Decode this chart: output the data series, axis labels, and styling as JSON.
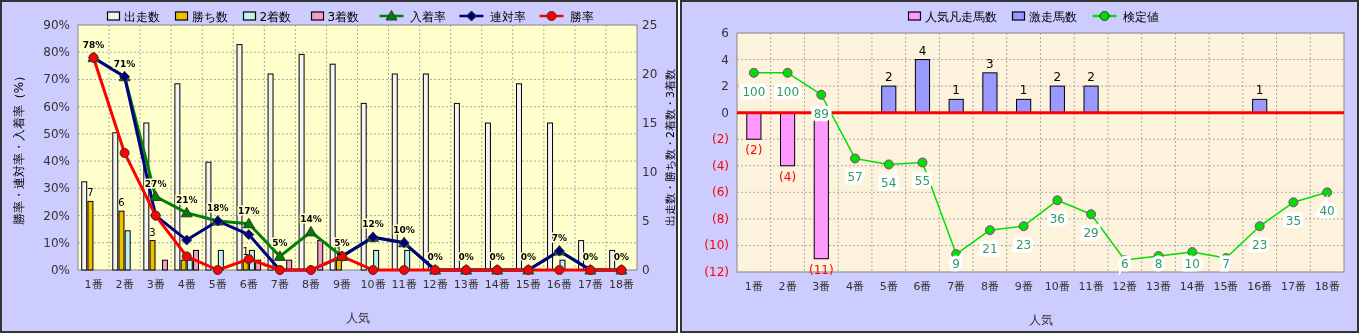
{
  "chart_data": [
    {
      "type": "bar",
      "xlabel": "人気",
      "ylabel": "勝率・連対率・入着率（%）",
      "y2label": "出走数・勝ち数・2着数・3着数",
      "categories": [
        "1番",
        "2番",
        "3番",
        "4番",
        "5番",
        "6番",
        "7番",
        "8番",
        "9番",
        "10番",
        "11番",
        "12番",
        "13番",
        "14番",
        "15番",
        "16番",
        "17番",
        "18番"
      ],
      "series": [
        {
          "name": "出走数",
          "axis": "y2",
          "color": "#f4f4f4",
          "values": [
            9,
            14,
            15,
            19,
            11,
            23,
            20,
            22,
            21,
            17,
            20,
            20,
            17,
            15,
            19,
            15,
            3,
            2
          ]
        },
        {
          "name": "勝ち数",
          "axis": "y2",
          "color": "#f0c000",
          "values": [
            7,
            6,
            3,
            1,
            0,
            1,
            0,
            0,
            1,
            0,
            0,
            0,
            0,
            0,
            0,
            0,
            0,
            0
          ],
          "value_labels": [
            "7",
            "6",
            "3",
            null,
            null,
            "1",
            null,
            null,
            "1",
            null,
            null,
            null,
            null,
            null,
            null,
            null,
            null,
            null
          ]
        },
        {
          "name": "2着数",
          "axis": "y2",
          "color": "#c0f0f0",
          "values": [
            0,
            4,
            0,
            1,
            2,
            2,
            0,
            0,
            0,
            2,
            2,
            0,
            0,
            0,
            0,
            1,
            0,
            0
          ]
        },
        {
          "name": "3着数",
          "axis": "y2",
          "color": "#f0a0c8",
          "values": [
            0,
            0,
            1,
            2,
            0,
            1,
            1,
            3,
            0,
            0,
            0,
            0,
            0,
            0,
            0,
            0,
            0,
            0
          ]
        },
        {
          "name": "入着率",
          "type": "line",
          "marker": "triangle",
          "color": "#008000",
          "values": [
            78,
            71,
            27,
            21,
            18,
            17,
            5,
            14,
            5,
            12,
            10,
            0,
            0,
            0,
            0,
            7,
            0,
            0
          ],
          "value_labels": [
            "78%",
            "71%",
            "27%",
            "21%",
            "18%",
            "17%",
            "5%",
            "14%",
            "5%",
            "12%",
            "10%",
            "0%",
            "0%",
            "0%",
            "0%",
            "7%",
            "0%",
            "0%"
          ]
        },
        {
          "name": "連対率",
          "type": "line",
          "marker": "diamond",
          "color": "#000080",
          "values": [
            78,
            71,
            20,
            11,
            18,
            13,
            0,
            0,
            5,
            12,
            10,
            0,
            0,
            0,
            0,
            7,
            0,
            0
          ]
        },
        {
          "name": "勝率",
          "type": "line",
          "marker": "circle",
          "color": "#ff0000",
          "values": [
            78,
            43,
            20,
            5,
            0,
            4,
            0,
            0,
            5,
            0,
            0,
            0,
            0,
            0,
            0,
            0,
            0,
            0
          ]
        }
      ],
      "ylim": [
        0,
        90
      ],
      "yticks": [
        {
          "value": 0,
          "label": "0%"
        },
        {
          "value": 10,
          "label": "10%"
        },
        {
          "value": 20,
          "label": "20%"
        },
        {
          "value": 30,
          "label": "30%"
        },
        {
          "value": 40,
          "label": "40%"
        },
        {
          "value": 50,
          "label": "50%"
        },
        {
          "value": 60,
          "label": "60%"
        },
        {
          "value": 70,
          "label": "70%"
        },
        {
          "value": 80,
          "label": "80%"
        },
        {
          "value": 90,
          "label": "90%"
        }
      ],
      "y2lim": [
        0,
        25
      ],
      "y2ticks": [
        0,
        5,
        10,
        15,
        20,
        25
      ],
      "grid": true,
      "legend": "top"
    },
    {
      "type": "bar",
      "stacked": true,
      "xlabel": "人気",
      "categories": [
        "1番",
        "2番",
        "3番",
        "4番",
        "5番",
        "6番",
        "7番",
        "8番",
        "9番",
        "10番",
        "11番",
        "12番",
        "13番",
        "14番",
        "15番",
        "16番",
        "17番",
        "18番"
      ],
      "series": [
        {
          "name": "人気凡走馬数",
          "color": "#ff99ff",
          "values": [
            -2,
            -4,
            -11,
            null,
            null,
            null,
            null,
            null,
            null,
            null,
            null,
            null,
            null,
            null,
            null,
            null,
            null,
            null
          ],
          "value_labels": [
            "(2)",
            "(4)",
            "(11)",
            null,
            null,
            null,
            null,
            null,
            null,
            null,
            null,
            null,
            null,
            null,
            null,
            null,
            null,
            null
          ]
        },
        {
          "name": "激走馬数",
          "color": "#9999ff",
          "values": [
            null,
            null,
            null,
            null,
            2,
            4,
            1,
            3,
            1,
            2,
            2,
            null,
            null,
            null,
            null,
            1,
            null,
            null
          ],
          "value_labels": [
            null,
            null,
            null,
            null,
            "2",
            "4",
            "1",
            "3",
            "1",
            "2",
            "2",
            null,
            null,
            null,
            null,
            "1",
            null,
            null
          ]
        },
        {
          "name": "検定値",
          "type": "line",
          "axis": "y2",
          "marker": "circle",
          "color": "#00e000",
          "values": [
            100,
            100,
            89,
            57,
            54,
            55,
            9,
            21,
            23,
            36,
            29,
            6,
            8,
            10,
            7,
            23,
            35,
            40
          ],
          "value_labels": [
            "100",
            "100",
            "89",
            "57",
            "54",
            "55",
            "9",
            "21",
            "23",
            "36",
            "29",
            "6",
            "8",
            "10",
            "7",
            "23",
            "35",
            "40"
          ]
        }
      ],
      "ylim": [
        -12,
        6
      ],
      "yticks": [
        {
          "value": -12,
          "label": "(12)"
        },
        {
          "value": -10,
          "label": "(10)"
        },
        {
          "value": -8,
          "label": "(8)"
        },
        {
          "value": -6,
          "label": "(6)"
        },
        {
          "value": -4,
          "label": "(4)"
        },
        {
          "value": -2,
          "label": "(2)"
        },
        0,
        2,
        4,
        6
      ],
      "y2lim": [
        0,
        120
      ],
      "grid": true,
      "legend": "top",
      "ref_lines": [
        {
          "axis": "y",
          "value": 0,
          "color": "#ff0000"
        }
      ]
    }
  ]
}
